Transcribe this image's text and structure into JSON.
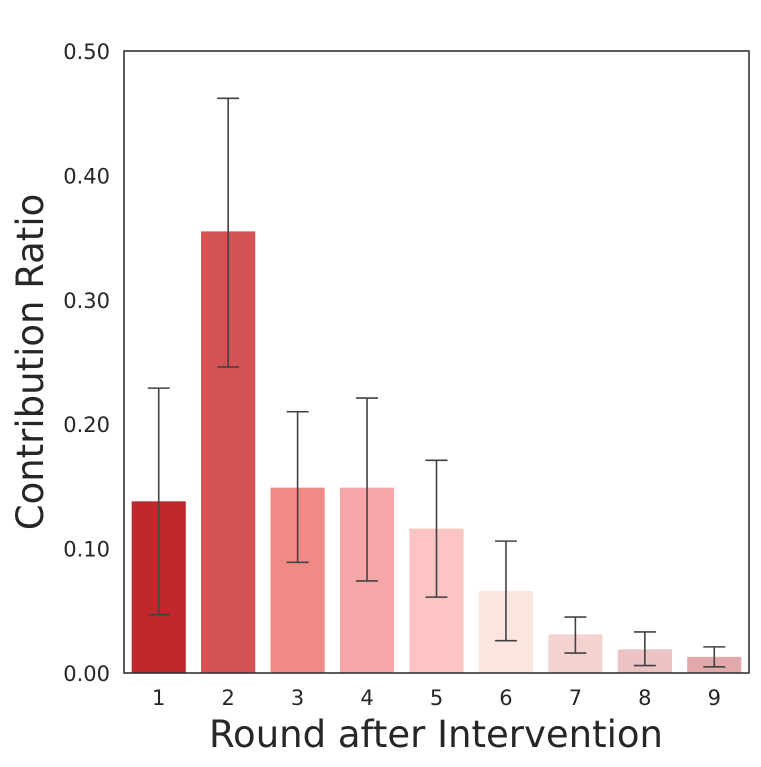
{
  "chart_data": {
    "type": "bar",
    "xlabel": "Round after Intervention",
    "ylabel": "Contribution Ratio",
    "ylim": [
      0,
      0.5
    ],
    "yticks": [
      0.0,
      0.1,
      0.2,
      0.3,
      0.4,
      0.5
    ],
    "ytick_labels": [
      "0.00",
      "0.10",
      "0.20",
      "0.30",
      "0.40",
      "0.50"
    ],
    "categories": [
      "1",
      "2",
      "3",
      "4",
      "5",
      "6",
      "7",
      "8",
      "9"
    ],
    "values": [
      0.138,
      0.355,
      0.149,
      0.149,
      0.116,
      0.066,
      0.031,
      0.019,
      0.013
    ],
    "error_low": [
      0.047,
      0.246,
      0.089,
      0.074,
      0.061,
      0.026,
      0.016,
      0.006,
      0.005
    ],
    "error_high": [
      0.229,
      0.462,
      0.21,
      0.221,
      0.171,
      0.106,
      0.045,
      0.033,
      0.021
    ],
    "colors": [
      "#c0282d",
      "#d55354",
      "#f08a84",
      "#f7a6a7",
      "#fcc4c2",
      "#fde4df",
      "#f4d2d0",
      "#ecc2c2",
      "#e2a9ab"
    ],
    "grid": false,
    "error_bar_color": "#424242"
  }
}
